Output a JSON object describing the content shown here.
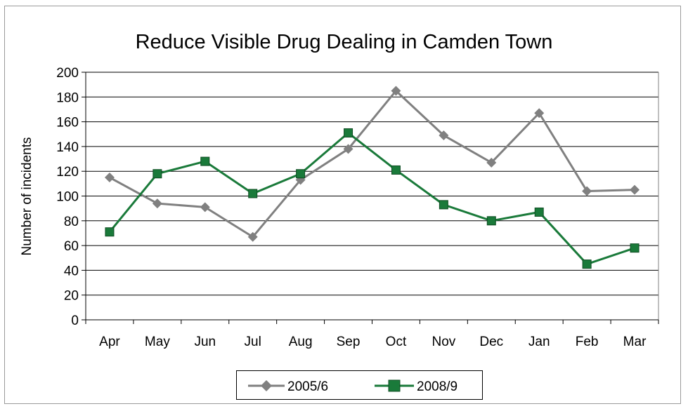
{
  "chart_data": {
    "type": "line",
    "title": "Reduce Visible Drug Dealing in Camden Town",
    "xlabel": "",
    "ylabel": "Number of incidents",
    "categories": [
      "Apr",
      "May",
      "Jun",
      "Jul",
      "Aug",
      "Sep",
      "Oct",
      "Nov",
      "Dec",
      "Jan",
      "Feb",
      "Mar"
    ],
    "ylim": [
      0,
      200
    ],
    "yticks": [
      0,
      20,
      40,
      60,
      80,
      100,
      120,
      140,
      160,
      180,
      200
    ],
    "grid": true,
    "legend_position": "bottom",
    "series": [
      {
        "name": "2005/6",
        "color": "#808080",
        "marker": "diamond",
        "values": [
          115,
          94,
          91,
          67,
          113,
          138,
          185,
          149,
          127,
          167,
          104,
          105
        ]
      },
      {
        "name": "2008/9",
        "color": "#1a7a3a",
        "marker": "square",
        "values": [
          71,
          118,
          128,
          102,
          118,
          151,
          121,
          93,
          80,
          87,
          45,
          58
        ]
      }
    ]
  }
}
